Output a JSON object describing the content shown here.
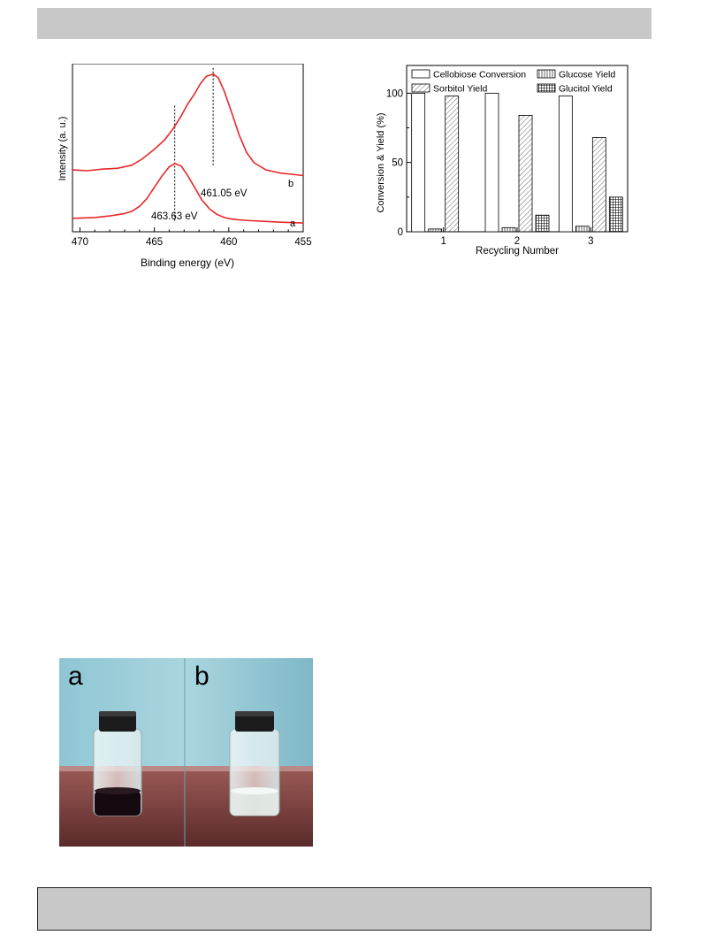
{
  "header": {
    "text": ""
  },
  "footer": {
    "text": ""
  },
  "figure_xps": {
    "chart_data": {
      "type": "line",
      "xlabel": "Binding energy (eV)",
      "ylabel": "Intensity (a. u.)",
      "xlim": [
        470.5,
        455
      ],
      "x_reversed": true,
      "xticks": [
        "470",
        "465",
        "460",
        "455"
      ],
      "series": [
        {
          "name": "a",
          "color": "#e8282a",
          "x": [
            470.5,
            469,
            468,
            467,
            466.5,
            466,
            465.5,
            465,
            464.5,
            464,
            463.63,
            463.2,
            462.8,
            462.3,
            461.8,
            461.3,
            460.8,
            460.3,
            459.8,
            459.3,
            458.5,
            457.5,
            456.5,
            455
          ],
          "y": [
            0.05,
            0.06,
            0.08,
            0.11,
            0.14,
            0.2,
            0.3,
            0.44,
            0.58,
            0.7,
            0.74,
            0.71,
            0.6,
            0.44,
            0.28,
            0.17,
            0.1,
            0.06,
            0.04,
            0.03,
            0.02,
            0.01,
            0.0,
            -0.01
          ]
        },
        {
          "name": "b",
          "color": "#e8282a",
          "x": [
            470.5,
            469.5,
            468.5,
            467.5,
            466.5,
            465.8,
            465,
            464.3,
            463.7,
            463.2,
            462.8,
            462.3,
            461.9,
            461.5,
            461.05,
            460.7,
            460.3,
            459.8,
            459.3,
            458.8,
            458.3,
            457.5,
            456.5,
            455.5,
            455
          ],
          "y": [
            0.66,
            0.65,
            0.67,
            0.68,
            0.72,
            0.8,
            0.92,
            1.04,
            1.19,
            1.34,
            1.48,
            1.62,
            1.75,
            1.84,
            1.87,
            1.82,
            1.65,
            1.38,
            1.1,
            0.88,
            0.75,
            0.66,
            0.62,
            0.6,
            0.59
          ]
        }
      ],
      "vlines": [
        463.63,
        461.05
      ],
      "annotations": [
        "463.63 eV",
        "461.05 eV"
      ],
      "curve_labels": [
        "a",
        "b"
      ]
    }
  },
  "figure_recycling": {
    "chart_data": {
      "type": "bar",
      "xlabel": "Recycling Number",
      "ylabel": "Conversion & Yield (%)",
      "ylim": [
        0,
        120
      ],
      "yticks": [
        "0",
        "50",
        "100"
      ],
      "categories": [
        "1",
        "2",
        "3"
      ],
      "legend_position": "top",
      "series": [
        {
          "name": "Cellobiose Conversion",
          "pattern": "empty",
          "values": [
            100,
            100,
            98
          ]
        },
        {
          "name": "Glucose Yield",
          "pattern": "vertical",
          "values": [
            2,
            3,
            4
          ]
        },
        {
          "name": "Sorbitol Yield",
          "pattern": "diagonal",
          "values": [
            98,
            84,
            68
          ]
        },
        {
          "name": "Glucitol Yield",
          "pattern": "crosshatch",
          "values": [
            0,
            12,
            25
          ]
        }
      ]
    }
  },
  "photo": {
    "label_a": "a",
    "label_b": "b"
  }
}
